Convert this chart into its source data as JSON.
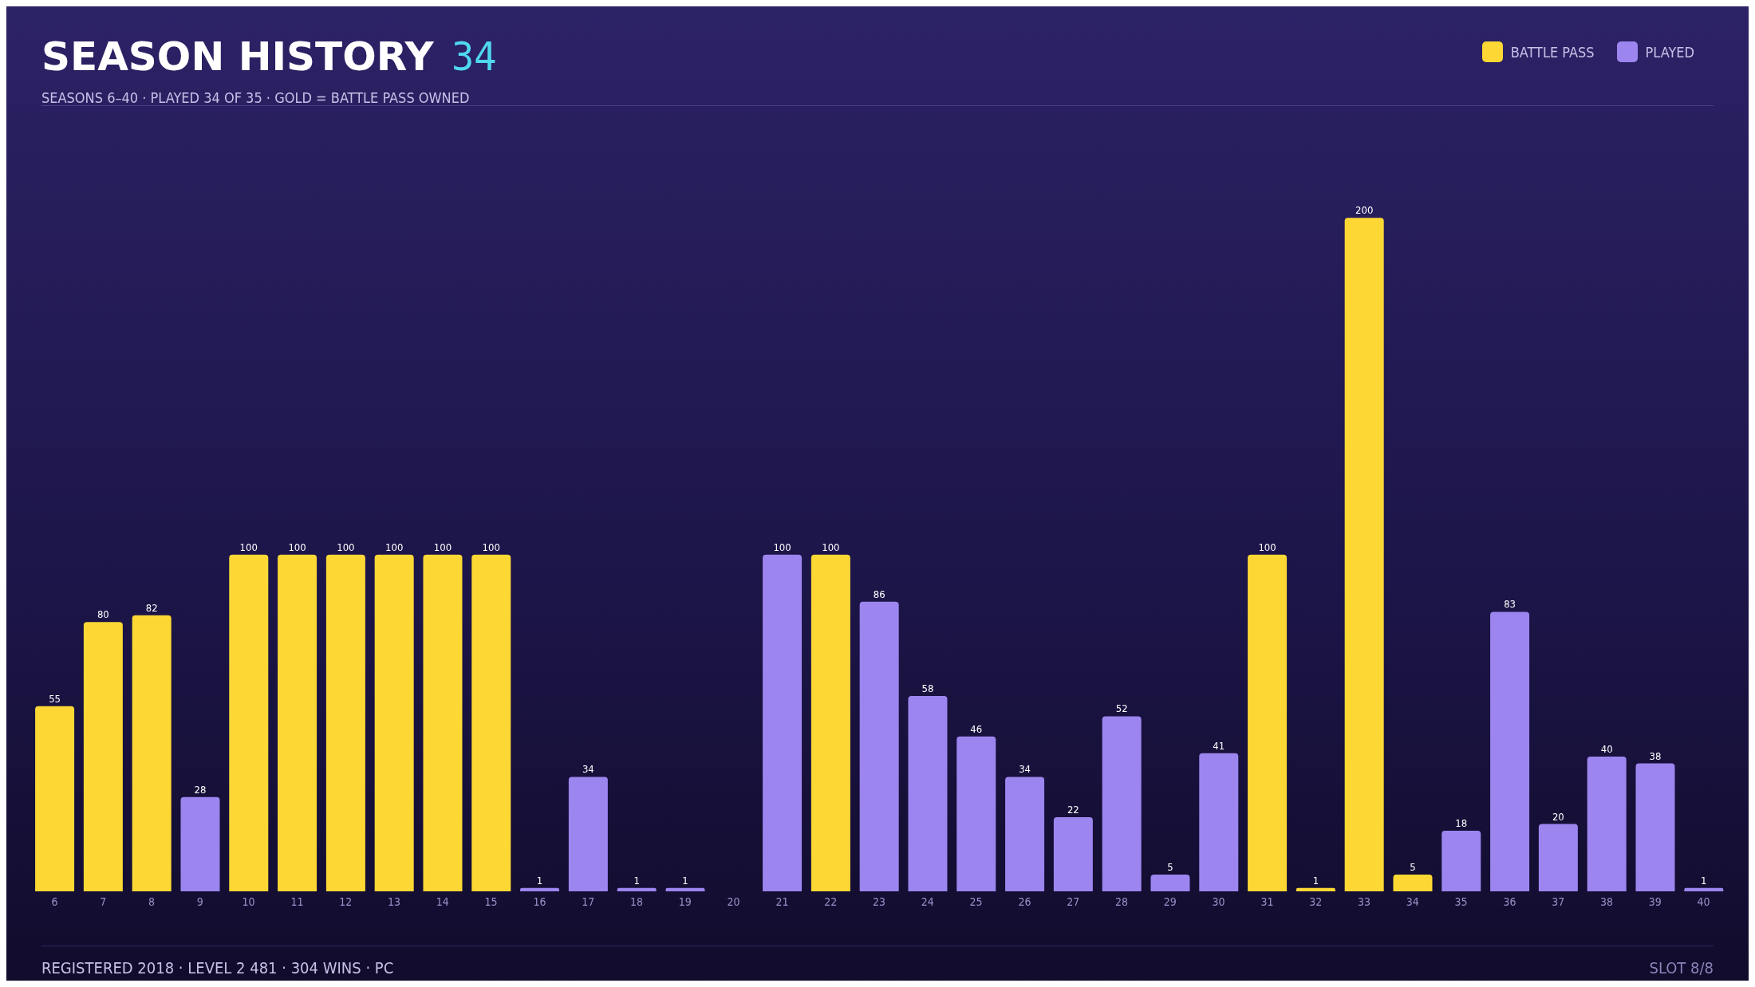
{
  "chart_data": {
    "type": "bar",
    "title": "SEASON HISTORY",
    "subtitle": "SEASONS 6–40 · PLAYED 34 OF 35 · GOLD = BATTLE PASS OWNED",
    "annotations": [
      "34",
      "REGISTERED 2018 · LEVEL 2 481 · 304 WINS · PC",
      "SLOT 8/8"
    ],
    "categories": [
      "6",
      "7",
      "8",
      "9",
      "10",
      "11",
      "12",
      "13",
      "14",
      "15",
      "16",
      "17",
      "18",
      "19",
      "20",
      "21",
      "22",
      "23",
      "24",
      "25",
      "26",
      "27",
      "28",
      "29",
      "30",
      "31",
      "32",
      "33",
      "34",
      "35",
      "36",
      "37",
      "38",
      "39",
      "40"
    ],
    "stacked": true,
    "data_labels": true,
    "legend": "top right",
    "series": [
      {
        "name": "BATTLE PASS",
        "color": "#fdd835",
        "values": [
          55,
          80,
          82,
          null,
          100,
          100,
          100,
          100,
          100,
          100,
          null,
          null,
          null,
          null,
          null,
          null,
          100,
          null,
          null,
          null,
          null,
          null,
          null,
          null,
          null,
          100,
          1,
          200,
          5,
          null,
          null,
          null,
          null,
          null,
          null
        ]
      },
      {
        "name": "PLAYED",
        "color": "#9d85f0",
        "values": [
          null,
          null,
          null,
          28,
          null,
          null,
          null,
          null,
          null,
          null,
          1,
          34,
          1,
          1,
          null,
          100,
          null,
          86,
          58,
          46,
          34,
          22,
          52,
          5,
          41,
          null,
          null,
          null,
          null,
          18,
          83,
          20,
          40,
          38,
          1
        ]
      }
    ]
  }
}
